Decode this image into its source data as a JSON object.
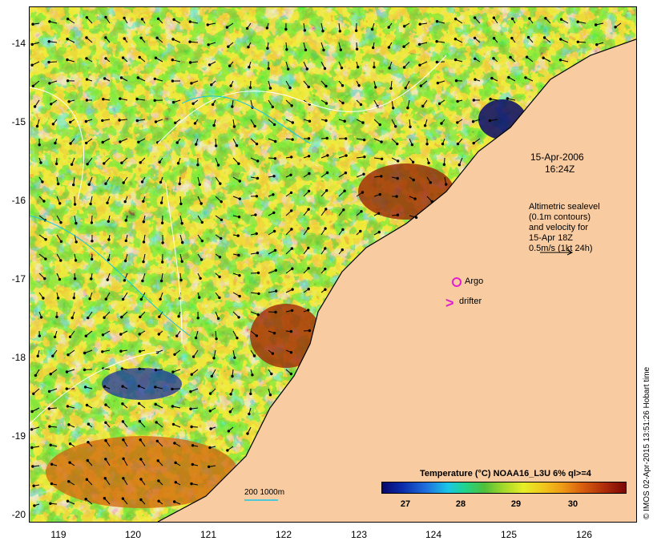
{
  "map": {
    "lat_labels": [
      "-14",
      "-15",
      "-16",
      "-17",
      "-18",
      "-19",
      "-20"
    ],
    "lon_labels": [
      "119",
      "120",
      "121",
      "122",
      "123",
      "124",
      "125",
      "126"
    ],
    "overpass_date": "15-Apr-2006",
    "overpass_time": "16:24Z",
    "altimetry_note": [
      "Altimetric sealevel",
      "(0.1m contours)",
      "and velocity for",
      "15-Apr 18Z",
      "0.5m/s (1kt 24h)"
    ],
    "argo_label": "Argo",
    "drifter_label": "drifter",
    "scale_label": "200  1000m",
    "colors": {
      "land": "#f8cba0",
      "marker": "#e020d0"
    }
  },
  "legend": {
    "title": "Temperature (°C) NOAA16_L3U 6% ql>=4",
    "ticks": [
      "27",
      "28",
      "29",
      "30"
    ]
  },
  "credit": "© IMOS 02-Apr-2015 13:51:26 Hobart time"
}
